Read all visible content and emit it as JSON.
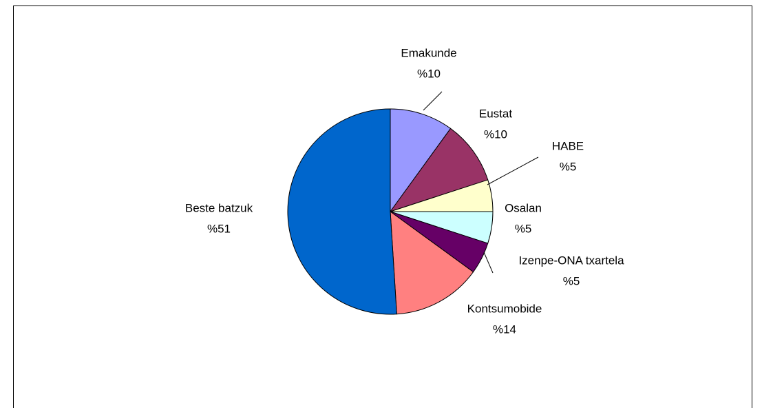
{
  "chart_data": {
    "type": "pie",
    "categories": [
      "Emakunde",
      "Eustat",
      "HABE",
      "Osalan",
      "Izenpe-ONA txartela",
      "Kontsumobide",
      "Beste batzuk"
    ],
    "values": [
      10,
      10,
      5,
      5,
      5,
      14,
      51
    ],
    "value_labels": [
      "%10",
      "%10",
      "%5",
      "%5",
      "%5",
      "%14",
      "%51"
    ],
    "colors": [
      "#9999ff",
      "#993366",
      "#ffffcc",
      "#ccffff",
      "#660066",
      "#ff8080",
      "#0066cc"
    ]
  }
}
